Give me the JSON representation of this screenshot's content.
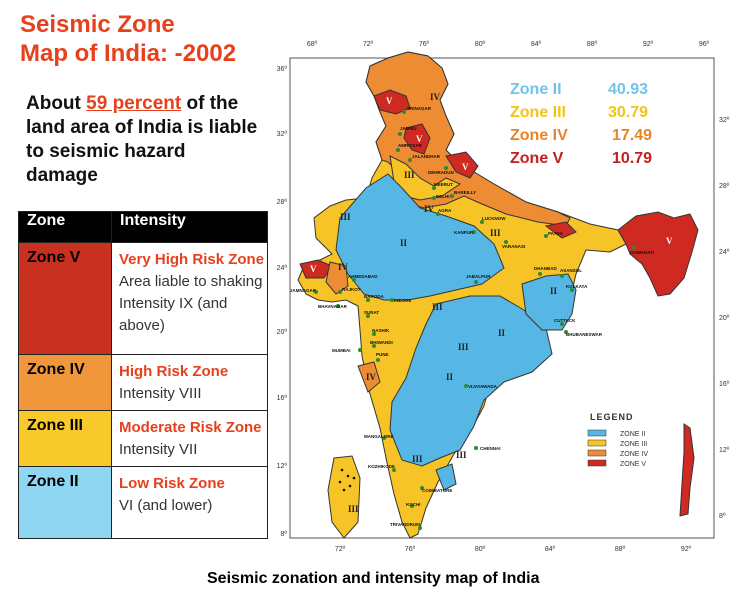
{
  "title": {
    "line1": "Seismic Zone",
    "line2": "Map of India: -2002"
  },
  "about": {
    "before": "About ",
    "percent": "59 percent",
    "after": " of the land area of India is liable to seismic hazard damage"
  },
  "table": {
    "headers": [
      "Zone",
      "Intensity"
    ],
    "rows": [
      {
        "zone": "Zone V",
        "risk": "Very High Risk Zone",
        "rest": " Area liable to shaking Intensity IX (and above)",
        "color": "#c8311f"
      },
      {
        "zone": "Zone IV",
        "risk": "High Risk  Zone",
        "rest": " Intensity VIII",
        "color": "#f0973b"
      },
      {
        "zone": "Zone III",
        "risk": "Moderate Risk Zone",
        "rest": " Intensity VII",
        "color": "#f8c92b"
      },
      {
        "zone": "Zone II",
        "risk": "Low Risk Zone",
        "rest": " VI (and lower)",
        "color": "#8fd6f2"
      }
    ]
  },
  "stats": [
    {
      "zone": "Zone II",
      "value": "40.93",
      "color": "#6fc4ec"
    },
    {
      "zone": "Zone III",
      "value": "30.79",
      "color": "#f2c318"
    },
    {
      "zone": "Zone IV",
      "value": "17.49",
      "color": "#e88427"
    },
    {
      "zone": "Zone V",
      "value": "10.79",
      "color": "#c41f1f"
    }
  ],
  "legend": {
    "title": "LEGEND",
    "items": [
      "ZONE II",
      "ZONE III",
      "ZONE IV",
      "ZONE V"
    ]
  },
  "axes": {
    "top": [
      "68º",
      "72º",
      "76º",
      "80º",
      "84º",
      "88º",
      "92º",
      "96º"
    ],
    "bottom": [
      "72º",
      "76º",
      "80º",
      "84º",
      "88º",
      "92º"
    ],
    "left": [
      "36º",
      "32º",
      "28º",
      "24º",
      "20º",
      "16º",
      "12º",
      "8º"
    ],
    "right": [
      "32º",
      "28º",
      "24º",
      "20º",
      "16º",
      "12º",
      "8º"
    ]
  },
  "zone_labels": [
    "II",
    "II",
    "II",
    "II",
    "III",
    "III",
    "III",
    "III",
    "III",
    "III",
    "III",
    "III",
    "IV",
    "IV",
    "IV",
    "IV",
    "V",
    "V",
    "V",
    "V",
    "V"
  ],
  "cities": [
    "SRINAGAR",
    "JAMMU",
    "AMRITSAR",
    "JALANDHAR",
    "DEHRADUN",
    "MEERUT",
    "DELHI",
    "BAREILLY",
    "AGRA",
    "LUCKNOW",
    "KANPUR",
    "VARANASI",
    "PATNA",
    "GUWAHATI",
    "AHMEDABAD",
    "JAMNAGAR",
    "RAJKOT",
    "BHAVNAGAR",
    "BARODA",
    "SURAT",
    "INDORE",
    "JABALPUR",
    "DHANBAD",
    "ASANSOL",
    "KOLKATA",
    "NASHIK",
    "BHIWANDI",
    "MUMBAI",
    "PUNE",
    "CUTTACK",
    "BHUBANESWAR",
    "VIJAYAWADA",
    "CHENNAI",
    "MANGALORE",
    "KOZHIKODE",
    "COIMBATORE",
    "KOCHI",
    "TRIVANDRUM"
  ],
  "caption": "Seismic zonation and intensity map of India",
  "colors": {
    "zone2": "#57b7e4",
    "zone3": "#f7c428",
    "zone4": "#ee8c34",
    "zone5": "#cf2a22"
  }
}
